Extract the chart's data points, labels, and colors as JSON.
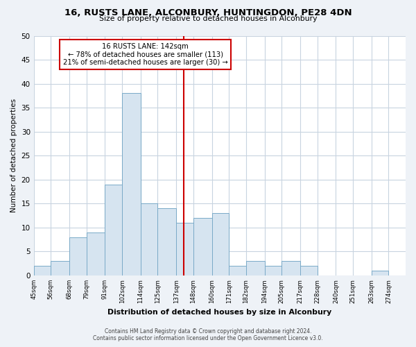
{
  "title": "16, RUSTS LANE, ALCONBURY, HUNTINGDON, PE28 4DN",
  "subtitle": "Size of property relative to detached houses in Alconbury",
  "xlabel": "Distribution of detached houses by size in Alconbury",
  "ylabel": "Number of detached properties",
  "bar_color": "#d6e4f0",
  "bar_edge_color": "#7aaac8",
  "vline_x": 142,
  "vline_color": "#cc0000",
  "annotation_title": "16 RUSTS LANE: 142sqm",
  "annotation_line1": "← 78% of detached houses are smaller (113)",
  "annotation_line2": "21% of semi-detached houses are larger (30) →",
  "annotation_box_color": "#cc0000",
  "bin_edges": [
    45,
    56,
    68,
    79,
    91,
    102,
    114,
    125,
    137,
    148,
    160,
    171,
    182,
    194,
    205,
    217,
    228,
    240,
    251,
    263,
    274,
    285
  ],
  "bin_counts": [
    2,
    3,
    8,
    9,
    19,
    38,
    15,
    14,
    11,
    12,
    13,
    2,
    3,
    2,
    3,
    2,
    0,
    0,
    0,
    1,
    0
  ],
  "ylim": [
    0,
    50
  ],
  "yticks": [
    0,
    5,
    10,
    15,
    20,
    25,
    30,
    35,
    40,
    45,
    50
  ],
  "xlim_left": 45,
  "xlim_right": 285,
  "footer_line1": "Contains HM Land Registry data © Crown copyright and database right 2024.",
  "footer_line2": "Contains public sector information licensed under the Open Government Licence v3.0.",
  "bg_color": "#eef2f7",
  "plot_bg_color": "#ffffff",
  "grid_color": "#c8d4e0"
}
